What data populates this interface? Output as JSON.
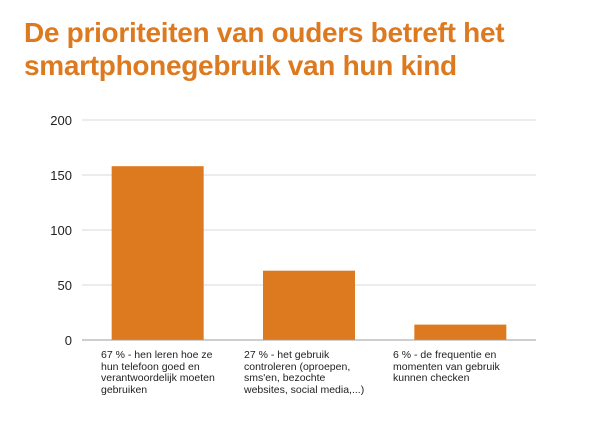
{
  "title_lines": [
    "De prioriteiten van ouders betreft het",
    "smartphonegebruik van hun kind"
  ],
  "colors": {
    "title": "#dd7a1f",
    "bar": "#dd7a1f",
    "grid": "#d9d9d9",
    "axis": "#9e9e9e"
  },
  "chart_data": {
    "type": "bar",
    "title": "De prioriteiten van ouders betreft het smartphonegebruik van hun kind",
    "xlabel": "",
    "ylabel": "",
    "ylim": [
      0,
      200
    ],
    "yticks": [
      0,
      50,
      100,
      150,
      200
    ],
    "grid": true,
    "categories": [
      [
        "67 % - hen leren hoe ze",
        "hun telefoon goed en",
        "verantwoordelijk moeten",
        "gebruiken"
      ],
      [
        "27 % - het gebruik",
        "controleren (oproepen,",
        "sms'en, bezochte",
        "websites, social media,...)"
      ],
      [
        "6 % - de frequentie en",
        "momenten van gebruik",
        "kunnen checken"
      ]
    ],
    "values": [
      158,
      63,
      14
    ]
  }
}
